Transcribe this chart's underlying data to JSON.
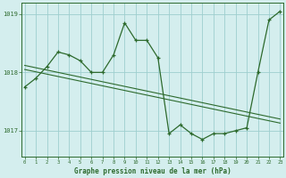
{
  "hours": [
    0,
    1,
    2,
    3,
    4,
    5,
    6,
    7,
    8,
    9,
    10,
    11,
    12,
    13,
    14,
    15,
    16,
    17,
    18,
    19,
    20,
    21,
    22,
    23
  ],
  "pressure": [
    1017.75,
    1017.9,
    1018.1,
    1018.35,
    1018.3,
    1018.2,
    1018.0,
    1018.0,
    1018.3,
    1018.85,
    1018.55,
    1018.55,
    1018.25,
    1016.95,
    1017.1,
    1016.95,
    1016.85,
    1016.95,
    1016.95,
    1017.0,
    1017.05,
    1018.0,
    1018.9,
    1019.05
  ],
  "trend_y": [
    1018.12,
    1018.08,
    1018.04,
    1018.0,
    1017.96,
    1017.92,
    1017.88,
    1017.84,
    1017.8,
    1017.76,
    1017.72,
    1017.68,
    1017.64,
    1017.6,
    1017.56,
    1017.52,
    1017.48,
    1017.44,
    1017.4,
    1017.36,
    1017.32,
    1017.28,
    1017.24,
    1017.2
  ],
  "trend2_y": [
    1018.05,
    1018.01,
    1017.97,
    1017.93,
    1017.89,
    1017.85,
    1017.81,
    1017.77,
    1017.73,
    1017.69,
    1017.65,
    1017.61,
    1017.57,
    1017.53,
    1017.49,
    1017.45,
    1017.41,
    1017.37,
    1017.33,
    1017.29,
    1017.25,
    1017.21,
    1017.17,
    1017.13
  ],
  "line_color": "#2d6a2d",
  "bg_color": "#d4eeee",
  "grid_color": "#9ecece",
  "xlabel": "Graphe pression niveau de la mer (hPa)",
  "ylim": [
    1016.55,
    1019.2
  ],
  "yticks": [
    1017,
    1018,
    1019
  ],
  "figsize": [
    3.2,
    2.0
  ],
  "dpi": 100
}
